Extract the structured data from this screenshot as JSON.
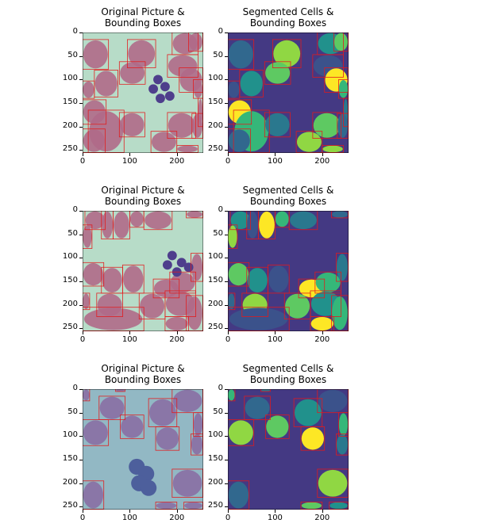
{
  "chart_data": [
    {
      "type": "image",
      "row": 0,
      "variant": "original",
      "title_lines": [
        "Original Picture &",
        "Bounding Boxes"
      ],
      "xlim": [
        0,
        255
      ],
      "ylim": [
        255,
        0
      ],
      "xticks": [
        "0",
        "100",
        "200"
      ],
      "yticks": [
        "0",
        "50",
        "100",
        "150",
        "200",
        "250"
      ]
    },
    {
      "type": "image",
      "row": 0,
      "variant": "segmented",
      "title_lines": [
        "Segmented Cells &",
        "Bounding Boxes"
      ],
      "xlim": [
        0,
        255
      ],
      "ylim": [
        255,
        0
      ],
      "xticks": [
        "0",
        "100",
        "200"
      ],
      "yticks": [
        "0",
        "50",
        "100",
        "150",
        "200",
        "250"
      ]
    },
    {
      "type": "image",
      "row": 1,
      "variant": "original",
      "title_lines": [
        "Original Picture &",
        "Bounding Boxes"
      ],
      "xlim": [
        0,
        255
      ],
      "ylim": [
        255,
        0
      ],
      "xticks": [
        "0",
        "100",
        "200"
      ],
      "yticks": [
        "0",
        "50",
        "100",
        "150",
        "200",
        "250"
      ]
    },
    {
      "type": "image",
      "row": 1,
      "variant": "segmented",
      "title_lines": [
        "Segmented Cells &",
        "Bounding Boxes"
      ],
      "xlim": [
        0,
        255
      ],
      "ylim": [
        255,
        0
      ],
      "xticks": [
        "0",
        "100",
        "200"
      ],
      "yticks": [
        "0",
        "50",
        "100",
        "150",
        "200",
        "250"
      ]
    },
    {
      "type": "image",
      "row": 2,
      "variant": "original",
      "title_lines": [
        "Original Picture &",
        "Bounding Boxes"
      ],
      "xlim": [
        0,
        255
      ],
      "ylim": [
        255,
        0
      ],
      "xticks": [
        "0",
        "100",
        "200"
      ],
      "yticks": [
        "0",
        "50",
        "100",
        "150",
        "200",
        "250"
      ]
    },
    {
      "type": "image",
      "row": 2,
      "variant": "segmented",
      "title_lines": [
        "Segmented Cells &",
        "Bounding Boxes"
      ],
      "xlim": [
        0,
        255
      ],
      "ylim": [
        255,
        0
      ],
      "xticks": [
        "0",
        "100",
        "200"
      ],
      "yticks": [
        "0",
        "50",
        "100",
        "150",
        "200",
        "250"
      ]
    }
  ],
  "rows": [
    {
      "boxes": [
        [
          0,
          15,
          55,
          78
        ],
        [
          95,
          15,
          155,
          75
        ],
        [
          78,
          62,
          133,
          110
        ],
        [
          25,
          80,
          75,
          137
        ],
        [
          0,
          103,
          25,
          140
        ],
        [
          0,
          143,
          50,
          195
        ],
        [
          12,
          165,
          88,
          255
        ],
        [
          78,
          170,
          132,
          222
        ],
        [
          0,
          205,
          48,
          255
        ],
        [
          145,
          210,
          200,
          255
        ],
        [
          180,
          170,
          240,
          225
        ],
        [
          190,
          0,
          245,
          47
        ],
        [
          180,
          47,
          245,
          95
        ],
        [
          205,
          75,
          255,
          127
        ],
        [
          235,
          100,
          255,
          140
        ],
        [
          245,
          140,
          255,
          200
        ],
        [
          232,
          172,
          255,
          225
        ],
        [
          200,
          240,
          245,
          255
        ],
        [
          225,
          0,
          255,
          40
        ]
      ],
      "nucleus": [
        [
          160,
          100
        ],
        [
          175,
          115
        ],
        [
          150,
          120
        ],
        [
          185,
          135
        ],
        [
          165,
          140
        ]
      ],
      "colors": {
        "bg": "#b7dcc8",
        "cell": "#b06a88",
        "nucleus": "#4e3e8c"
      }
    },
    {
      "boxes": [
        [
          5,
          0,
          48,
          40
        ],
        [
          40,
          0,
          65,
          60
        ],
        [
          65,
          0,
          100,
          60
        ],
        [
          100,
          0,
          130,
          35
        ],
        [
          130,
          0,
          190,
          40
        ],
        [
          220,
          0,
          255,
          15
        ],
        [
          0,
          30,
          20,
          80
        ],
        [
          0,
          110,
          45,
          160
        ],
        [
          40,
          120,
          85,
          175
        ],
        [
          85,
          115,
          130,
          175
        ],
        [
          150,
          145,
          205,
          185
        ],
        [
          185,
          130,
          240,
          175
        ],
        [
          230,
          90,
          255,
          150
        ],
        [
          0,
          175,
          15,
          210
        ],
        [
          30,
          175,
          85,
          225
        ],
        [
          120,
          175,
          175,
          230
        ],
        [
          175,
          170,
          240,
          225
        ],
        [
          0,
          205,
          130,
          255
        ],
        [
          175,
          225,
          225,
          255
        ],
        [
          220,
          180,
          255,
          255
        ]
      ],
      "nucleus": [
        [
          190,
          95
        ],
        [
          210,
          110
        ],
        [
          180,
          115
        ],
        [
          200,
          130
        ],
        [
          225,
          120
        ]
      ],
      "colors": {
        "bg": "#b7dcc8",
        "cell": "#b06a88",
        "nucleus": "#4e3e8c"
      }
    },
    {
      "boxes": [
        [
          0,
          0,
          15,
          25
        ],
        [
          70,
          0,
          90,
          5
        ],
        [
          35,
          15,
          90,
          65
        ],
        [
          0,
          65,
          55,
          120
        ],
        [
          80,
          55,
          130,
          105
        ],
        [
          140,
          20,
          200,
          80
        ],
        [
          190,
          0,
          255,
          50
        ],
        [
          155,
          80,
          205,
          130
        ],
        [
          235,
          50,
          255,
          100
        ],
        [
          230,
          95,
          255,
          140
        ],
        [
          0,
          195,
          45,
          255
        ],
        [
          190,
          170,
          255,
          230
        ],
        [
          155,
          240,
          200,
          255
        ],
        [
          215,
          240,
          255,
          255
        ]
      ],
      "nucleus": [
        [
          115,
          165
        ],
        [
          135,
          180
        ],
        [
          120,
          200
        ],
        [
          140,
          210
        ]
      ],
      "colors": {
        "bg": "#92b8c4",
        "cell": "#8a6fa4",
        "nucleus": "#4d5f9c"
      }
    }
  ],
  "seg_colors": {
    "bg": "#443983",
    "palette": [
      "#31688e",
      "#21918c",
      "#35b779",
      "#90d743",
      "#3b528b",
      "#2a788e",
      "#5ec962",
      "#fde725"
    ],
    "box": "#e31a1c"
  }
}
